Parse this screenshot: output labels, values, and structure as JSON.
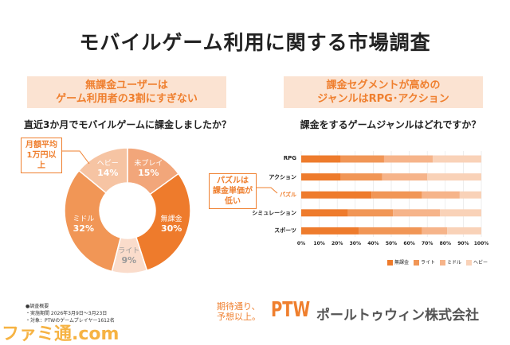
{
  "title": "モバイルゲーム利用に関する市場調査",
  "left": {
    "band_line1": "無課金ユーザーは",
    "band_line2": "ゲーム利用者の3割にすぎない",
    "question": "直近3か月でモバイルゲームに課金しましたか？",
    "callout_line1": "月額平均",
    "callout_line2": "1万円以上"
  },
  "right": {
    "band_line1": "課金セグメントが高めの",
    "band_line2": "ジャンルはRPG･アクション",
    "question": "課金をするゲームジャンルはどれですか？",
    "callout_line1": "パズルは",
    "callout_line2": "課金単価が低い"
  },
  "chart_data": [
    {
      "type": "pie",
      "donut": true,
      "start": "top",
      "direction": "clockwise",
      "slices": [
        {
          "label": "未プレイ",
          "value": 15,
          "text": "15%",
          "color": "#f2a67a"
        },
        {
          "label": "無課金",
          "value": 30,
          "text": "30%",
          "color": "#ee7b2c"
        },
        {
          "label": "ライト",
          "value": 9,
          "text": "9%",
          "color": "#fadccb"
        },
        {
          "label": "ミドル",
          "value": 32,
          "text": "32%",
          "color": "#f19656"
        },
        {
          "label": "ヘビー",
          "value": 14,
          "text": "14%",
          "color": "#f6c4a3"
        }
      ]
    },
    {
      "type": "bar",
      "orientation": "horizontal",
      "stacked": true,
      "xlim": [
        0,
        100
      ],
      "grid": true,
      "legend": "bottom-right",
      "categories": [
        "RPG",
        "アクション",
        "パズル",
        "シミュレーション",
        "スポーツ"
      ],
      "highlight_category": "パズル",
      "highlight_color": "#ef7f2e",
      "xticks": [
        "0%",
        "10%",
        "20%",
        "30%",
        "40%",
        "50%",
        "60%",
        "70%",
        "80%",
        "90%",
        "100%"
      ],
      "series": [
        {
          "name": "無課金",
          "color": "#ee7b2c",
          "values": [
            22,
            22,
            39,
            26,
            32
          ]
        },
        {
          "name": "ライト",
          "color": "#f19656",
          "values": [
            24,
            23,
            28,
            25,
            35
          ]
        },
        {
          "name": "ミドル",
          "color": "#f6b48a",
          "values": [
            27,
            25,
            21,
            26,
            14
          ]
        },
        {
          "name": "ヘビー",
          "color": "#f9d2b8",
          "values": [
            27,
            30,
            12,
            23,
            19
          ]
        }
      ]
    }
  ],
  "footnote": {
    "heading": "●調査概要",
    "line1": "・実施期間 2026年3月9日～3月23日",
    "line2": "・対象：PTWのゲームプレイヤー1612名"
  },
  "logo": {
    "tagline1": "期待通り、",
    "tagline2": "予想以上。",
    "brand": "PTW",
    "company": "ポールトゥウィン株式会社"
  },
  "watermark": "ファミ通.com"
}
